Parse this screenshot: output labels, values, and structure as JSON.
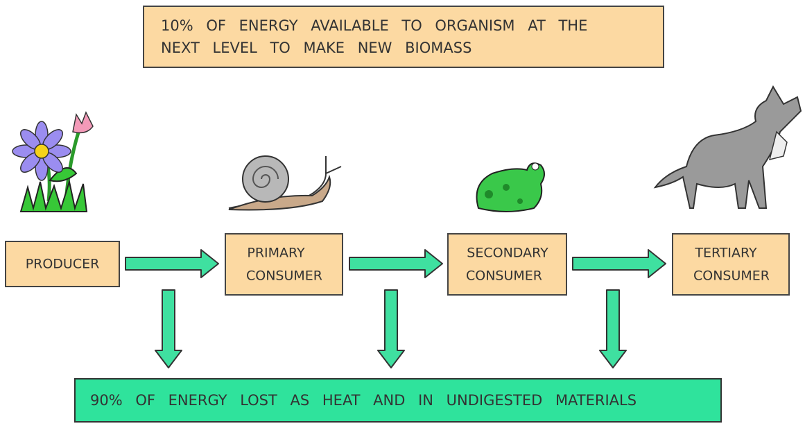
{
  "header": {
    "lines": [
      "10% OF ENERGY AVAILABLE TO ORGANISM AT THE",
      "NEXT LEVEL TO MAKE NEW BIOMASS"
    ]
  },
  "nodes": [
    {
      "lines": [
        "PRODUCER"
      ]
    },
    {
      "lines": [
        "PRIMARY",
        "CONSUMER"
      ]
    },
    {
      "lines": [
        "SECONDARY",
        "CONSUMER"
      ]
    },
    {
      "lines": [
        "TERTIARY",
        "CONSUMER"
      ]
    }
  ],
  "footer": {
    "text": "90% OF ENERGY LOST AS HEAT AND IN UNDIGESTED MATERIALS"
  }
}
